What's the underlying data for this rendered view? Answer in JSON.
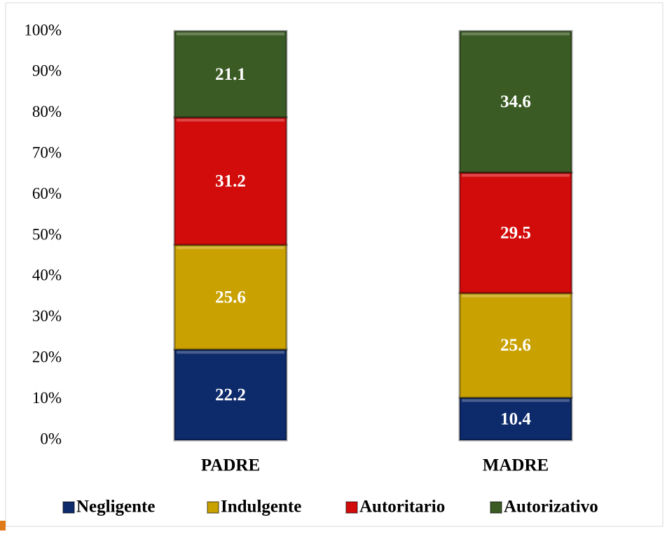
{
  "chart_data": {
    "type": "stacked_bar",
    "categories": [
      "PADRE",
      "MADRE"
    ],
    "series": [
      {
        "name": "Negligente",
        "color": "#0d2a6b",
        "values": [
          22.2,
          10.4
        ]
      },
      {
        "name": "Indulgente",
        "color": "#c9a100",
        "values": [
          25.6,
          25.6
        ]
      },
      {
        "name": "Autoritario",
        "color": "#d20b0b",
        "values": [
          31.2,
          29.5
        ]
      },
      {
        "name": "Autorizativo",
        "color": "#3b5b24",
        "values": [
          21.1,
          34.6
        ]
      }
    ],
    "ylim": [
      0,
      100
    ],
    "yticks": [
      {
        "value": 0,
        "label": "0%"
      },
      {
        "value": 10,
        "label": "10%"
      },
      {
        "value": 20,
        "label": "20%"
      },
      {
        "value": 30,
        "label": "30%"
      },
      {
        "value": 40,
        "label": "40%"
      },
      {
        "value": 50,
        "label": "50%"
      },
      {
        "value": 60,
        "label": "60%"
      },
      {
        "value": 70,
        "label": "70%"
      },
      {
        "value": 80,
        "label": "80%"
      },
      {
        "value": 90,
        "label": "90%"
      },
      {
        "value": 100,
        "label": "100%"
      }
    ],
    "grid": false,
    "legend": "bottom"
  }
}
